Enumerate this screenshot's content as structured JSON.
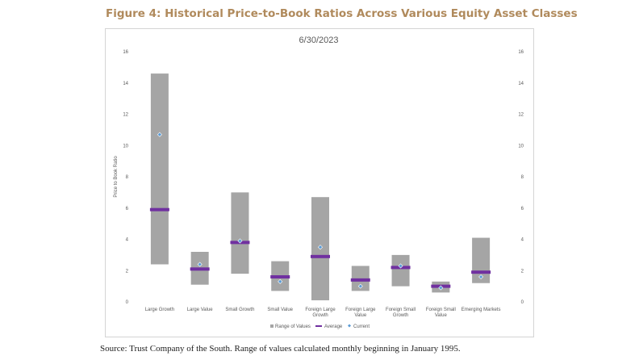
{
  "figure_title": "Figure 4: Historical Price-to-Book Ratios Across Various Equity Asset Classes",
  "source_note": "Source: Trust Company of the South. Range of values calculated monthly beginning in January 1995.",
  "colors": {
    "range": "#a5a5a5",
    "average": "#7030a0",
    "current": "#5b9bd5",
    "title": "#b08a5c"
  },
  "chart_data": {
    "type": "bar",
    "title": "6/30/2023",
    "ylabel": "Price to Book Ratio",
    "ylim": [
      0,
      16
    ],
    "yticks": [
      0,
      2,
      4,
      6,
      8,
      10,
      12,
      14,
      16
    ],
    "grid": false,
    "legend_position": "bottom",
    "categories": [
      [
        "Large Growth"
      ],
      [
        "Large Value"
      ],
      [
        "Small Growth"
      ],
      [
        "Small Value"
      ],
      [
        "Foreign Large",
        "Growth"
      ],
      [
        "Foreign Large",
        "Value"
      ],
      [
        "Foreign Small",
        "Growth"
      ],
      [
        "Foreign Small",
        "Value"
      ],
      [
        "Emerging Markets"
      ]
    ],
    "series": [
      {
        "name": "Range of Values",
        "low": [
          2.4,
          1.1,
          1.8,
          0.7,
          0.1,
          0.7,
          1.0,
          0.6,
          1.2
        ],
        "high": [
          14.6,
          3.2,
          7.0,
          2.6,
          6.7,
          2.3,
          3.0,
          1.3,
          4.1
        ]
      },
      {
        "name": "Average",
        "values": [
          5.9,
          2.1,
          3.8,
          1.6,
          2.9,
          1.4,
          2.2,
          1.0,
          1.9
        ]
      },
      {
        "name": "Current",
        "values": [
          10.7,
          2.4,
          3.9,
          1.3,
          3.5,
          1.0,
          2.3,
          0.9,
          1.6
        ]
      }
    ]
  }
}
